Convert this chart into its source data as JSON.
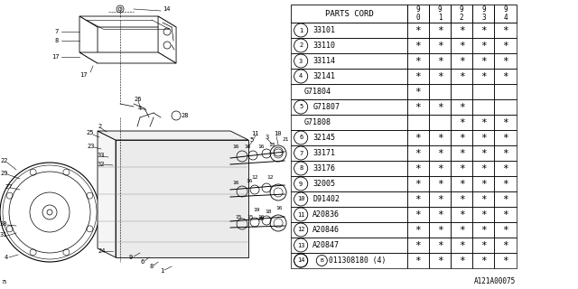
{
  "table": {
    "rows": [
      {
        "num": "1",
        "code": "33101",
        "stars": [
          true,
          true,
          true,
          true,
          true
        ]
      },
      {
        "num": "2",
        "code": "33110",
        "stars": [
          true,
          true,
          true,
          true,
          true
        ]
      },
      {
        "num": "3",
        "code": "33114",
        "stars": [
          true,
          true,
          true,
          true,
          true
        ]
      },
      {
        "num": "4",
        "code": "32141",
        "stars": [
          true,
          true,
          true,
          true,
          true
        ]
      },
      {
        "num": "",
        "code": "G71804",
        "stars": [
          true,
          false,
          false,
          false,
          false
        ]
      },
      {
        "num": "5",
        "code": "G71807",
        "stars": [
          true,
          true,
          true,
          false,
          false
        ]
      },
      {
        "num": "",
        "code": "G71808",
        "stars": [
          false,
          false,
          true,
          true,
          true
        ]
      },
      {
        "num": "6",
        "code": "32145",
        "stars": [
          true,
          true,
          true,
          true,
          true
        ]
      },
      {
        "num": "7",
        "code": "33171",
        "stars": [
          true,
          true,
          true,
          true,
          true
        ]
      },
      {
        "num": "8",
        "code": "33176",
        "stars": [
          true,
          true,
          true,
          true,
          true
        ]
      },
      {
        "num": "9",
        "code": "32005",
        "stars": [
          true,
          true,
          true,
          true,
          true
        ]
      },
      {
        "num": "10",
        "code": "D91402",
        "stars": [
          true,
          true,
          true,
          true,
          true
        ]
      },
      {
        "num": "11",
        "code": "A20836",
        "stars": [
          true,
          true,
          true,
          true,
          true
        ]
      },
      {
        "num": "12",
        "code": "A20846",
        "stars": [
          true,
          true,
          true,
          true,
          true
        ]
      },
      {
        "num": "13",
        "code": "A20847",
        "stars": [
          true,
          true,
          true,
          true,
          true
        ]
      },
      {
        "num": "14",
        "code": "011308180 (4)",
        "stars": [
          true,
          true,
          true,
          true,
          true
        ]
      }
    ]
  },
  "years": [
    "9\n0",
    "9\n1",
    "9\n2",
    "9\n3",
    "9\n4"
  ],
  "footer": "A121A00075",
  "bg_color": "#ffffff"
}
